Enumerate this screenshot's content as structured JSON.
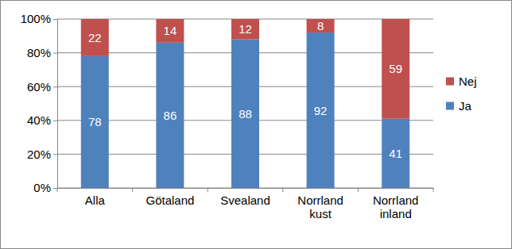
{
  "chart_data": {
    "type": "bar",
    "stacked": true,
    "categories": [
      "Alla",
      "Götaland",
      "Svealand",
      "Norrland kust",
      "Norrland inland"
    ],
    "series": [
      {
        "name": "Ja",
        "color": "#4f81bd",
        "values": [
          78,
          86,
          88,
          92,
          41
        ]
      },
      {
        "name": "Nej",
        "color": "#c0504d",
        "values": [
          22,
          14,
          12,
          8,
          59
        ]
      }
    ],
    "ylim": [
      0,
      100
    ],
    "yticks": [
      {
        "value": 0,
        "label": "0%"
      },
      {
        "value": 20,
        "label": "20%"
      },
      {
        "value": 40,
        "label": "40%"
      },
      {
        "value": 60,
        "label": "60%"
      },
      {
        "value": 80,
        "label": "80%"
      },
      {
        "value": 100,
        "label": "100%"
      }
    ],
    "grid": true,
    "legend": "right",
    "data_labels": true
  }
}
